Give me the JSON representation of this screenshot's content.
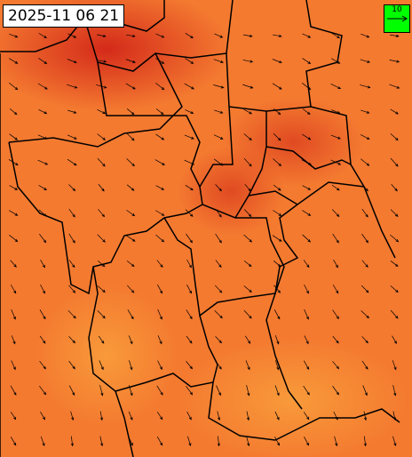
{
  "timestamp": "2025-11 06 21",
  "legend": {
    "label": "10"
  }
}
